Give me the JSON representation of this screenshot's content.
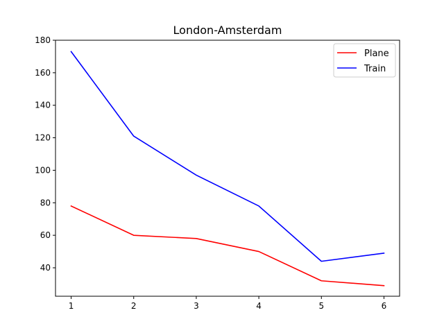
{
  "chart_data": {
    "type": "line",
    "title": "London-Amsterdam",
    "xlabel": "",
    "ylabel": "",
    "x": [
      1,
      2,
      3,
      4,
      5,
      6
    ],
    "xlim": [
      0.75,
      6.25
    ],
    "ylim": [
      22.5,
      180
    ],
    "xticks": [
      1,
      2,
      3,
      4,
      5,
      6
    ],
    "yticks": [
      40,
      60,
      80,
      100,
      120,
      140,
      160,
      180
    ],
    "grid": false,
    "legend_position": "top-right",
    "series": [
      {
        "name": "Plane",
        "color": "#ff0000",
        "values": [
          78,
          60,
          58,
          50,
          32,
          29
        ]
      },
      {
        "name": "Train",
        "color": "#0000ff",
        "values": [
          173,
          121,
          97,
          78,
          44,
          49
        ]
      }
    ]
  }
}
